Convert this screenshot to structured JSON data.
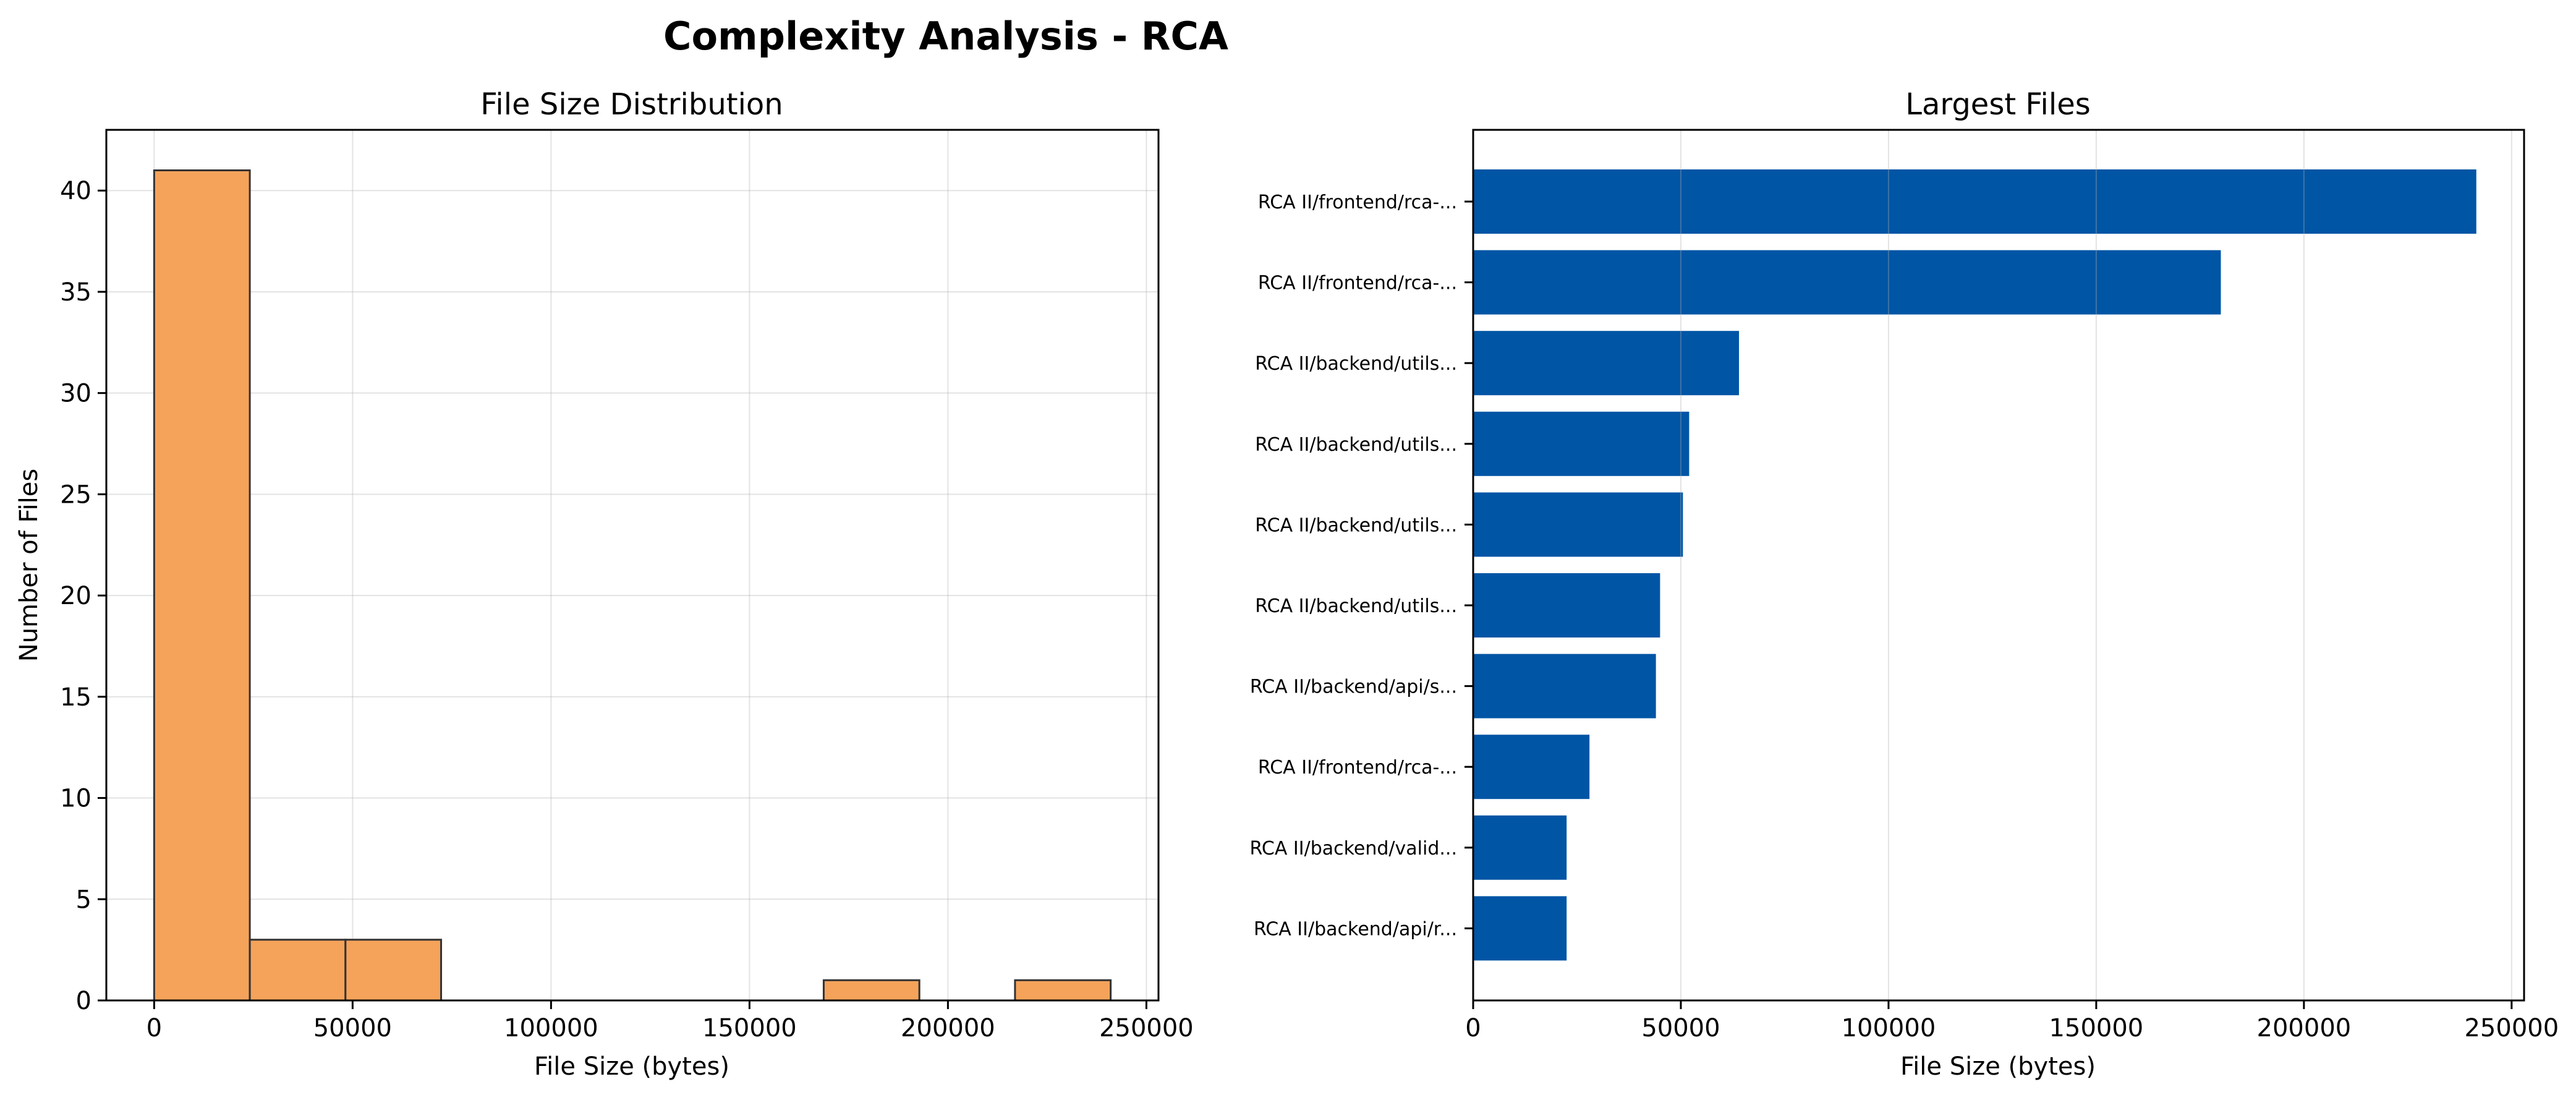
{
  "figure": {
    "title": "Complexity Analysis - RCA"
  },
  "chart_data": [
    {
      "type": "bar",
      "subtype": "histogram",
      "title": "File Size Distribution",
      "xlabel": "File Size (bytes)",
      "ylabel": "Number of Files",
      "bins": [
        {
          "start": 0,
          "end": 24100,
          "count": 41
        },
        {
          "start": 24100,
          "end": 48200,
          "count": 3
        },
        {
          "start": 48200,
          "end": 72300,
          "count": 3
        },
        {
          "start": 72300,
          "end": 96400,
          "count": 0
        },
        {
          "start": 96400,
          "end": 120500,
          "count": 0
        },
        {
          "start": 120500,
          "end": 144600,
          "count": 0
        },
        {
          "start": 144600,
          "end": 168700,
          "count": 0
        },
        {
          "start": 168700,
          "end": 192800,
          "count": 1
        },
        {
          "start": 192800,
          "end": 216900,
          "count": 0
        },
        {
          "start": 216900,
          "end": 241000,
          "count": 1
        }
      ],
      "xlim": [
        -12050,
        253050
      ],
      "ylim": [
        0,
        43
      ],
      "xticks": [
        0,
        50000,
        100000,
        150000,
        200000,
        250000
      ],
      "yticks": [
        0,
        5,
        10,
        15,
        20,
        25,
        30,
        35,
        40
      ],
      "grid": true,
      "bar_color": "#f5a35a",
      "edge_color": "#333333"
    },
    {
      "type": "bar",
      "orientation": "horizontal",
      "title": "Largest Files",
      "xlabel": "File Size (bytes)",
      "ylabel": "",
      "categories": [
        "RCA II/frontend/rca-...",
        "RCA II/frontend/rca-...",
        "RCA II/backend/utils...",
        "RCA II/backend/utils...",
        "RCA II/backend/utils...",
        "RCA II/backend/utils...",
        "RCA II/backend/api/s...",
        "RCA II/frontend/rca-...",
        "RCA II/backend/valid...",
        "RCA II/backend/api/r..."
      ],
      "values": [
        241500,
        180000,
        64000,
        52000,
        50500,
        45000,
        44000,
        28000,
        22500,
        22500
      ],
      "xlim": [
        0,
        253000
      ],
      "xticks": [
        0,
        50000,
        100000,
        150000,
        200000,
        250000
      ],
      "grid": true,
      "bar_color": "#0055a5"
    }
  ]
}
